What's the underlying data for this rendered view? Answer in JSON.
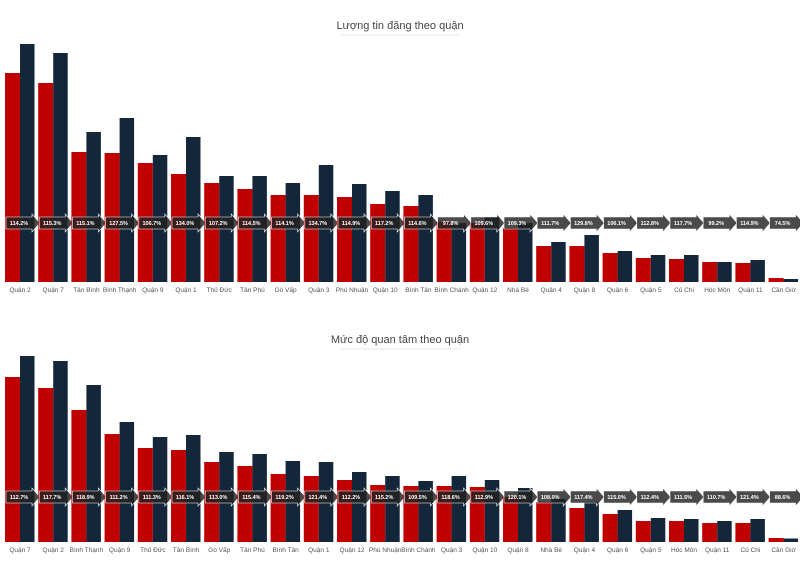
{
  "colors": {
    "series1": "#c00000",
    "series2": "#14273a",
    "label_bg": "#222222"
  },
  "chart_data": [
    {
      "type": "bar",
      "title": "Lượng tin đăng theo quận",
      "xlabel": "",
      "ylabel": "",
      "categories": [
        "Quận 2",
        "Quận 7",
        "Tân Bình",
        "Bình Thạnh",
        "Quận 9",
        "Quận 1",
        "Thủ Đức",
        "Tân Phú",
        "Gò Vấp",
        "Quận 3",
        "Phú Nhuận",
        "Quận 10",
        "Bình Tân",
        "Bình Chánh",
        "Quận 12",
        "Nhà Bè",
        "Quận 4",
        "Quận 8",
        "Quận 6",
        "Quận 5",
        "Củ Chi",
        "Hóc Môn",
        "Quận 11",
        "Cần Giờ"
      ],
      "series": [
        {
          "values": [
            209,
            199,
            130,
            129,
            119,
            108,
            99,
            93,
            87,
            87,
            85,
            78,
            76,
            60,
            59,
            54,
            36,
            36,
            29,
            24,
            23,
            20,
            19,
            4
          ]
        },
        {
          "values": [
            238,
            229,
            150,
            164,
            127,
            145,
            106,
            106,
            99,
            117,
            98,
            91,
            87,
            59,
            65,
            59,
            40,
            47,
            31,
            27,
            27,
            20,
            22,
            3
          ]
        }
      ],
      "labels": [
        "114.2%",
        "115.3%",
        "115.1%",
        "127.5%",
        "106.7%",
        "134.0%",
        "107.2%",
        "114.5%",
        "114.1%",
        "134.7%",
        "114.9%",
        "117.2%",
        "114.6%",
        "97.8%",
        "109.6%",
        "109.3%",
        "111.7%",
        "129.8%",
        "106.1%",
        "112.8%",
        "117.7%",
        "99.2%",
        "114.9%",
        "74.5%"
      ]
    },
    {
      "type": "bar",
      "title": "Mức độ quan tâm theo quận",
      "xlabel": "",
      "ylabel": "",
      "categories": [
        "Quận 7",
        "Quận 2",
        "Bình Thạnh",
        "Quận 9",
        "Thủ Đức",
        "Tân Bình",
        "Gò Vấp",
        "Tân Phú",
        "Bình Tân",
        "Quận 1",
        "Quận 12",
        "Phú Nhuận",
        "Bình Chánh",
        "Quận 3",
        "Quận 10",
        "Quận 8",
        "Nhà Bè",
        "Quận 4",
        "Quận 6",
        "Quận 5",
        "Hóc Môn",
        "Quận 11",
        "Củ Chi",
        "Cần Giờ"
      ],
      "series": [
        {
          "values": [
            165,
            154,
            132,
            108,
            94,
            92,
            80,
            76,
            68,
            66,
            62,
            57,
            56,
            56,
            55,
            45,
            40,
            34,
            28,
            21,
            21,
            19,
            19,
            4
          ]
        },
        {
          "values": [
            186,
            181,
            157,
            120,
            105,
            107,
            90,
            88,
            81,
            80,
            70,
            66,
            61,
            66,
            62,
            54,
            43,
            40,
            32,
            24,
            23,
            21,
            23,
            3.5
          ]
        }
      ],
      "labels": [
        "112.7%",
        "117.7%",
        "118.9%",
        "111.2%",
        "111.3%",
        "116.1%",
        "113.0%",
        "115.4%",
        "119.2%",
        "121.4%",
        "112.2%",
        "115.2%",
        "109.5%",
        "118.6%",
        "112.9%",
        "120.1%",
        "108.0%",
        "117.4%",
        "115.0%",
        "112.4%",
        "111.5%",
        "110.7%",
        "121.4%",
        "88.6%"
      ]
    }
  ]
}
